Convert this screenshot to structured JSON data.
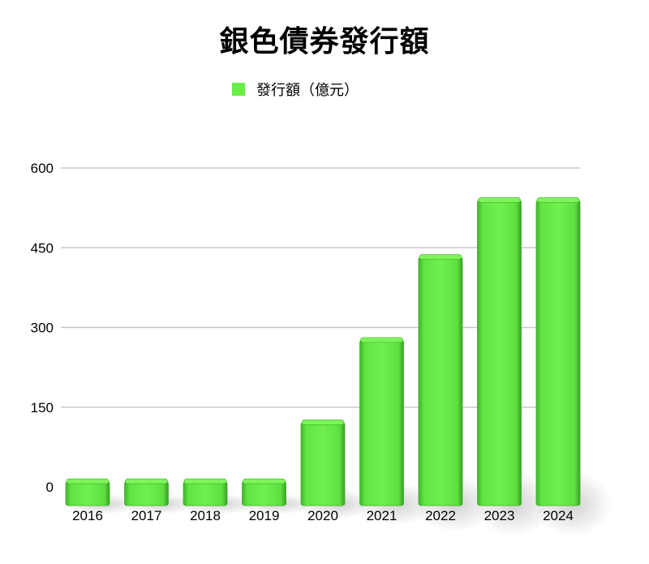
{
  "chart_data": {
    "type": "bar",
    "title": "銀色債券發行額",
    "categories": [
      "2016",
      "2017",
      "2018",
      "2019",
      "2020",
      "2021",
      "2022",
      "2023",
      "2024"
    ],
    "series": [
      {
        "name": "發行額（億元）",
        "values": [
          9,
          9,
          9,
          9,
          120,
          275,
          431,
          538,
          538
        ]
      }
    ],
    "xlabel": "",
    "ylabel": "",
    "ylim": [
      0,
      600
    ],
    "yticks": [
      "0",
      "150",
      "300",
      "450",
      "600"
    ],
    "grid": true,
    "legend_position": "top-center",
    "colors": {
      "bar": "#66ee44",
      "bar_top": "#7cf55a",
      "bar_edge": "#3fae28",
      "grid": "#c8c8c8"
    }
  }
}
